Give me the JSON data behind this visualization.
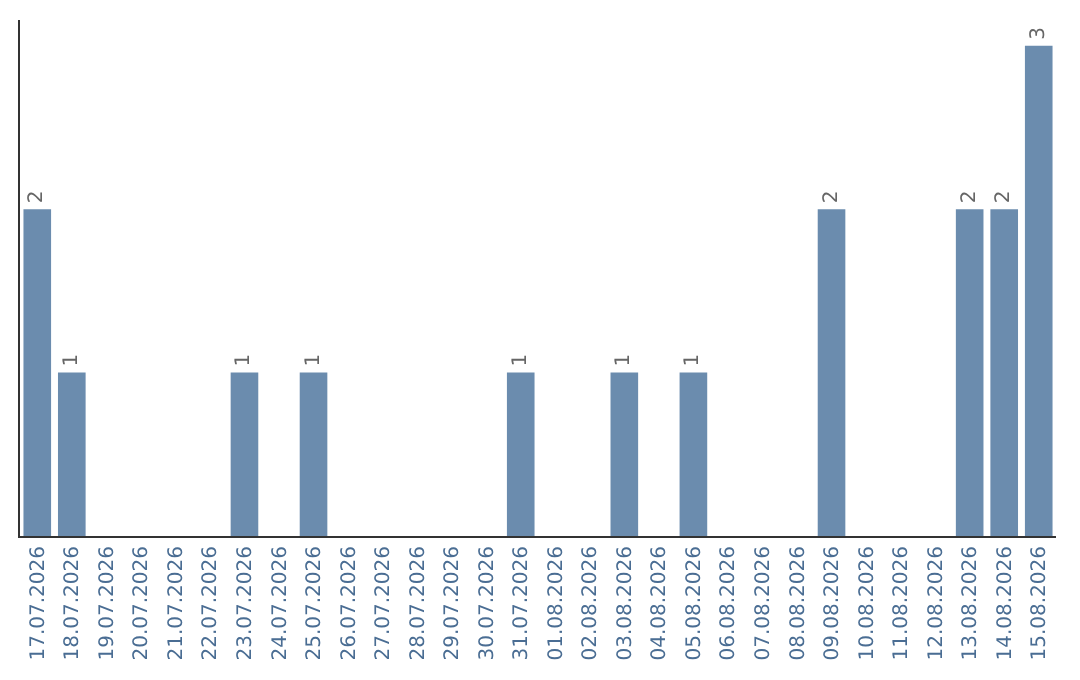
{
  "chart_data": {
    "type": "bar",
    "categories": [
      "17.07.2026",
      "18.07.2026",
      "19.07.2026",
      "20.07.2026",
      "21.07.2026",
      "22.07.2026",
      "23.07.2026",
      "24.07.2026",
      "25.07.2026",
      "26.07.2026",
      "27.07.2026",
      "28.07.2026",
      "29.07.2026",
      "30.07.2026",
      "31.07.2026",
      "01.08.2026",
      "02.08.2026",
      "03.08.2026",
      "04.08.2026",
      "05.08.2026",
      "06.08.2026",
      "07.08.2026",
      "08.08.2026",
      "09.08.2026",
      "10.08.2026",
      "11.08.2026",
      "12.08.2026",
      "13.08.2026",
      "14.08.2026",
      "15.08.2026"
    ],
    "values": [
      2,
      1,
      0,
      0,
      0,
      0,
      1,
      0,
      1,
      0,
      0,
      0,
      0,
      0,
      1,
      0,
      0,
      1,
      0,
      1,
      0,
      0,
      0,
      2,
      0,
      0,
      0,
      2,
      2,
      3
    ],
    "value_labels": [
      "2",
      "1",
      null,
      null,
      null,
      null,
      "1",
      null,
      "1",
      null,
      null,
      null,
      null,
      null,
      "1",
      null,
      null,
      "1",
      null,
      "1",
      null,
      null,
      null,
      "2",
      null,
      null,
      null,
      "2",
      "2",
      "3"
    ],
    "color": "#6b8cae",
    "legend": false
  }
}
